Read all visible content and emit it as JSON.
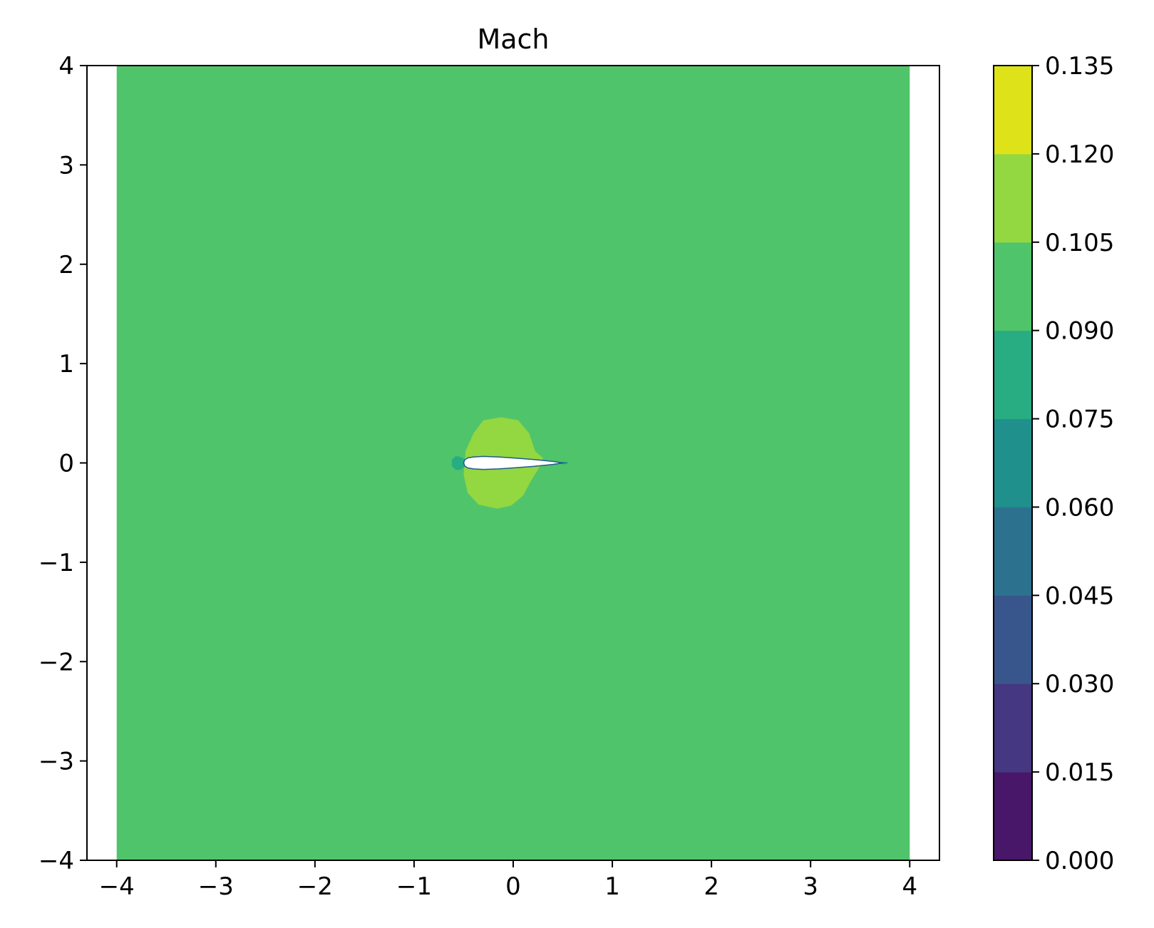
{
  "chart_data": {
    "type": "contourf",
    "title": "Mach",
    "xlabel": "",
    "ylabel": "",
    "xlim": [
      -4.3,
      4.3
    ],
    "ylim": [
      -4,
      4
    ],
    "domain": {
      "x": [
        -4,
        4
      ],
      "y": [
        -4,
        4
      ]
    },
    "x_ticks": [
      {
        "value": -4,
        "label": "−4"
      },
      {
        "value": -3,
        "label": "−3"
      },
      {
        "value": -2,
        "label": "−2"
      },
      {
        "value": -1,
        "label": "−1"
      },
      {
        "value": 0,
        "label": "0"
      },
      {
        "value": 1,
        "label": "1"
      },
      {
        "value": 2,
        "label": "2"
      },
      {
        "value": 3,
        "label": "3"
      },
      {
        "value": 4,
        "label": "4"
      }
    ],
    "y_ticks": [
      {
        "value": 4,
        "label": "4"
      },
      {
        "value": 3,
        "label": "3"
      },
      {
        "value": 2,
        "label": "2"
      },
      {
        "value": 1,
        "label": "1"
      },
      {
        "value": 0,
        "label": "0"
      },
      {
        "value": -1,
        "label": "−1"
      },
      {
        "value": -2,
        "label": "−2"
      },
      {
        "value": -3,
        "label": "−3"
      },
      {
        "value": -4,
        "label": "−4"
      }
    ],
    "levels": [
      0.0,
      0.015,
      0.03,
      0.045,
      0.06,
      0.075,
      0.09,
      0.105,
      0.12,
      0.135
    ],
    "colorbar_labels": [
      "0.000",
      "0.015",
      "0.030",
      "0.045",
      "0.060",
      "0.075",
      "0.090",
      "0.105",
      "0.120",
      "0.135"
    ],
    "level_colors": [
      "#481769",
      "#453781",
      "#39568c",
      "#2c728e",
      "#20908d",
      "#27ad81",
      "#50c46a",
      "#93d741",
      "#dde318"
    ],
    "background_level": [
      0.09,
      0.105
    ],
    "regions": [
      {
        "level": [
          0.105,
          0.12
        ],
        "polygon": [
          [
            -0.48,
            0.12
          ],
          [
            -0.4,
            0.3
          ],
          [
            -0.3,
            0.43
          ],
          [
            -0.12,
            0.46
          ],
          [
            0.05,
            0.43
          ],
          [
            0.16,
            0.3
          ],
          [
            0.22,
            0.12
          ],
          [
            0.3,
            0.05
          ],
          [
            0.26,
            -0.05
          ],
          [
            0.18,
            -0.18
          ],
          [
            0.1,
            -0.33
          ],
          [
            -0.02,
            -0.43
          ],
          [
            -0.16,
            -0.46
          ],
          [
            -0.35,
            -0.42
          ],
          [
            -0.46,
            -0.3
          ],
          [
            -0.5,
            -0.12
          ]
        ]
      },
      {
        "level": [
          0.075,
          0.09
        ],
        "polygon": [
          [
            -0.62,
            0.03
          ],
          [
            -0.58,
            0.07
          ],
          [
            -0.53,
            0.06
          ],
          [
            -0.48,
            0.03
          ],
          [
            -0.48,
            -0.03
          ],
          [
            -0.53,
            -0.07
          ],
          [
            -0.58,
            -0.07
          ],
          [
            -0.62,
            -0.03
          ]
        ]
      },
      {
        "level": [
          0.06,
          0.075
        ],
        "polygon": [
          [
            0.45,
            0.008
          ],
          [
            0.52,
            0.012
          ],
          [
            0.56,
            0.0
          ],
          [
            0.52,
            -0.012
          ],
          [
            0.45,
            -0.008
          ]
        ]
      }
    ],
    "airfoil": {
      "upper": [
        [
          -0.5,
          0.0
        ],
        [
          -0.49,
          0.03
        ],
        [
          -0.46,
          0.05
        ],
        [
          -0.4,
          0.06
        ],
        [
          -0.3,
          0.065
        ],
        [
          -0.15,
          0.06
        ],
        [
          0.0,
          0.05
        ],
        [
          0.2,
          0.035
        ],
        [
          0.4,
          0.015
        ],
        [
          0.5,
          0.0
        ]
      ],
      "lower": [
        [
          0.5,
          0.0
        ],
        [
          0.4,
          -0.015
        ],
        [
          0.2,
          -0.035
        ],
        [
          0.0,
          -0.05
        ],
        [
          -0.15,
          -0.06
        ],
        [
          -0.3,
          -0.065
        ],
        [
          -0.4,
          -0.06
        ],
        [
          -0.46,
          -0.05
        ],
        [
          -0.49,
          -0.03
        ]
      ]
    }
  }
}
